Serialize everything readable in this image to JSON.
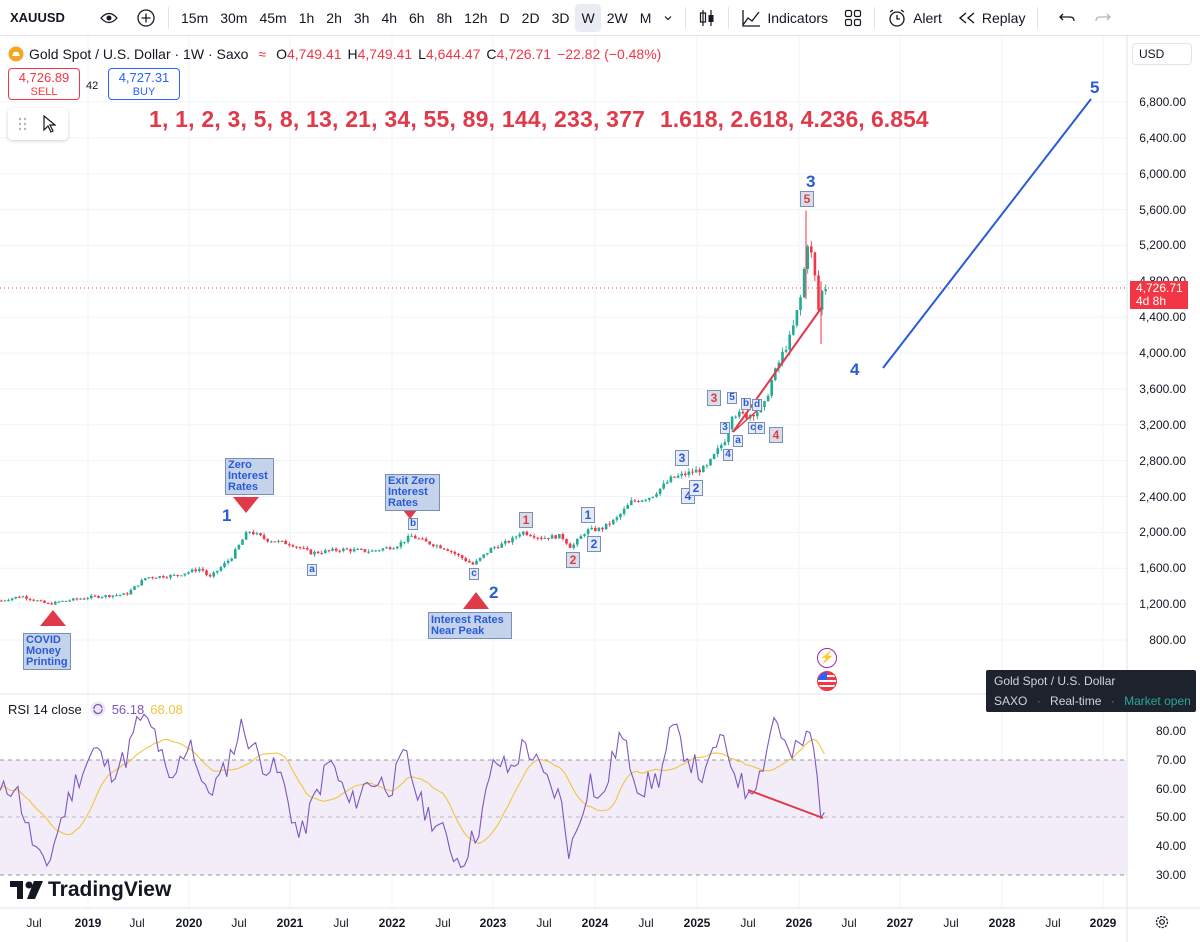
{
  "toolbar": {
    "symbol": "XAUUSD",
    "intervals": [
      "15m",
      "30m",
      "45m",
      "1h",
      "2h",
      "3h",
      "4h",
      "6h",
      "8h",
      "12h",
      "D",
      "2D",
      "3D",
      "W",
      "2W",
      "M"
    ],
    "active_interval": "W",
    "indicators_label": "Indicators",
    "alert_label": "Alert",
    "replay_label": "Replay"
  },
  "legend": {
    "title": "Gold Spot / U.S. Dollar · 1W · Saxo",
    "open_label": "O",
    "open": "4,749.41",
    "high_label": "H",
    "high": "4,749.41",
    "low_label": "L",
    "low": "4,644.47",
    "close_label": "C",
    "close": "4,726.71",
    "change": "−22.82 (−0.48%)"
  },
  "trade": {
    "sell_price": "4,726.89",
    "sell_label": "SELL",
    "spread": "42",
    "buy_price": "4,727.31",
    "buy_label": "BUY"
  },
  "annotations": {
    "fib_sequence": "1, 1, 2, 3, 5, 8, 13, 21, 34, 55, 89, 144, 233, 377",
    "fib_ratios": "1.618, 2.618, 4.236, 6.854",
    "covid_note": [
      "COVID",
      "Money",
      "Printing"
    ],
    "zero_rates_note": [
      "Zero",
      "Interest",
      "Rates"
    ],
    "exit_zero_note": [
      "Exit Zero",
      "Interest",
      "Rates"
    ],
    "rates_peak_note": [
      "Interest Rates",
      "Near Peak"
    ],
    "wave_labels": {
      "w1": "1",
      "w2": "2",
      "w3": "3",
      "w4": "4",
      "w5": "5"
    },
    "sub_labels": {
      "a1": "a",
      "b1": "b",
      "c1": "c",
      "r1": "1",
      "r2": "2",
      "r3": "3",
      "r4": "4",
      "r5": "5",
      "b_1": "1",
      "b_2": "2",
      "b_3": "3",
      "b_4": "4",
      "b_2b": "2",
      "sm3": "3",
      "sm4": "4",
      "sm5": "5",
      "sma": "a",
      "smb": "b",
      "smc": "c",
      "smd": "d",
      "sme": "e"
    }
  },
  "price_scale": {
    "currency": "USD",
    "labels": [
      "6,800.00",
      "6,400.00",
      "6,000.00",
      "5,600.00",
      "5,200.00",
      "4,800.00",
      "4,400.00",
      "4,000.00",
      "3,600.00",
      "3,200.00",
      "2,800.00",
      "2,400.00",
      "2,000.00",
      "1,600.00",
      "1,200.00",
      "800.00"
    ],
    "last_price": "4,726.71",
    "countdown": "4d 8h"
  },
  "info_card": {
    "name": "Gold Spot / U.S. Dollar",
    "exchange": "SAXO",
    "feed": "Real-time",
    "status": "Market open"
  },
  "rsi": {
    "label": "RSI 14 close",
    "value": "56.18",
    "ma_value": "68.08",
    "scale": [
      "80.00",
      "70.00",
      "60.00",
      "50.00",
      "40.00",
      "30.00"
    ]
  },
  "time_axis": {
    "labels": [
      "Jul",
      "2019",
      "Jul",
      "2020",
      "Jul",
      "2021",
      "Jul",
      "2022",
      "Jul",
      "2023",
      "Jul",
      "2024",
      "Jul",
      "2025",
      "Jul",
      "2026",
      "Jul",
      "2027",
      "Jul",
      "2028",
      "Jul",
      "2029"
    ]
  },
  "logo": "TradingView",
  "colors": {
    "red": "#f23645",
    "blue": "#2962ff",
    "wave_blue": "#2a5bd7",
    "candle_up": "#22ab94",
    "candle_down": "#f23645",
    "rsi": "#7e57c2",
    "rsi_ma": "#f0c544",
    "rsi_band": "#ede7f6"
  },
  "chart_data": [
    {
      "type": "candlestick",
      "title": "Gold Spot / U.S. Dollar · 1W · Saxo",
      "ylim": [
        800,
        7000
      ],
      "x": [
        "2018-07",
        "2019-01",
        "2019-07",
        "2020-01",
        "2020-07",
        "2021-01",
        "2021-07",
        "2022-01",
        "2022-07",
        "2023-01",
        "2023-07",
        "2024-01",
        "2024-07",
        "2025-01",
        "2025-07",
        "2026-01",
        "2026-04"
      ],
      "close_approx": [
        1240,
        1290,
        1420,
        1560,
        1980,
        1850,
        1810,
        1800,
        1710,
        1920,
        1940,
        2040,
        2420,
        2650,
        3330,
        4600,
        4727
      ],
      "last": 4726.71
    },
    {
      "type": "line",
      "title": "RSI 14 close",
      "ylim": [
        30,
        85
      ],
      "bands": [
        30,
        50,
        70
      ],
      "series": [
        {
          "name": "RSI",
          "last": 56.18
        },
        {
          "name": "RSI MA",
          "last": 68.08
        }
      ]
    }
  ]
}
